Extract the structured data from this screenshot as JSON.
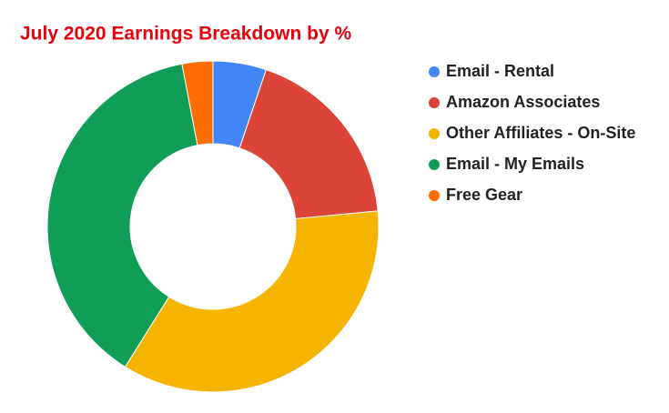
{
  "chart_data": {
    "type": "donut",
    "title": "July 2020 Earnings Breakdown by %",
    "categories": [
      "Email - Rental",
      "Amazon Associates",
      "Other Affiliates - On-Site",
      "Email - My Emails",
      "Free Gear"
    ],
    "values": [
      5.2,
      18.3,
      35.4,
      38.1,
      3.0
    ],
    "colors": [
      "#4285f4",
      "#db4437",
      "#f4b400",
      "#0f9d58",
      "#ff6d01"
    ],
    "legend": "right"
  }
}
